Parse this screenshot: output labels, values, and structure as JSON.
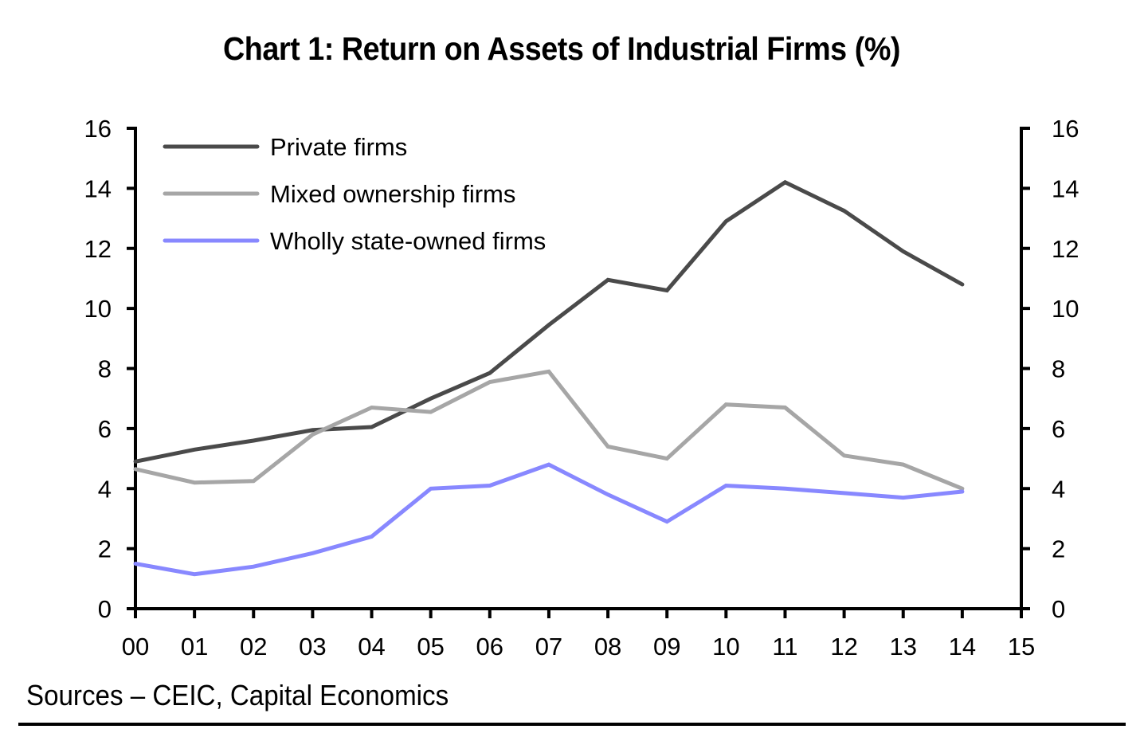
{
  "chart_data": {
    "type": "line",
    "title": "Chart 1: Return on Assets of Industrial Firms (%)",
    "xlabel": "",
    "ylabel": "",
    "x": [
      "00",
      "01",
      "02",
      "03",
      "04",
      "05",
      "06",
      "07",
      "08",
      "09",
      "10",
      "11",
      "12",
      "13",
      "14"
    ],
    "x_ticks": [
      "00",
      "01",
      "02",
      "03",
      "04",
      "05",
      "06",
      "07",
      "08",
      "09",
      "10",
      "11",
      "12",
      "13",
      "14",
      "15"
    ],
    "ylim": [
      0,
      16
    ],
    "y_ticks": [
      0,
      2,
      4,
      6,
      8,
      10,
      12,
      14,
      16
    ],
    "y_ticks_right": [
      0,
      2,
      4,
      6,
      8,
      10,
      12,
      14,
      16
    ],
    "grid": false,
    "legend_position": "top-left",
    "series": [
      {
        "name": "Private firms",
        "color": "#4a4a4a",
        "values": [
          4.9,
          5.3,
          5.6,
          5.95,
          6.05,
          7.0,
          7.85,
          9.45,
          10.95,
          10.6,
          12.9,
          14.2,
          13.25,
          11.9,
          10.8
        ]
      },
      {
        "name": "Mixed ownership firms",
        "color": "#a6a6a6",
        "values": [
          4.65,
          4.2,
          4.25,
          5.8,
          6.7,
          6.55,
          7.55,
          7.9,
          5.4,
          5.0,
          6.8,
          6.7,
          5.1,
          4.8,
          4.0
        ]
      },
      {
        "name": "Wholly state-owned firms",
        "color": "#8888ff",
        "values": [
          1.5,
          1.15,
          1.4,
          1.85,
          2.4,
          4.0,
          4.1,
          4.8,
          3.8,
          2.9,
          4.1,
          4.0,
          3.85,
          3.7,
          3.9
        ]
      }
    ],
    "source": "Sources – CEIC, Capital Economics"
  }
}
